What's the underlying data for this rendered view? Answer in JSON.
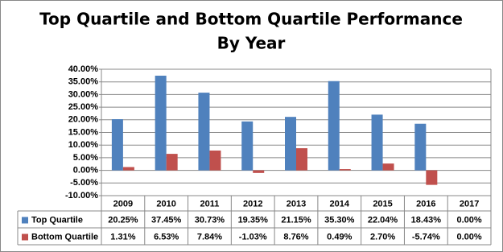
{
  "chart_data": {
    "type": "bar",
    "title": [
      "Top Quartile and Bottom Quartile Performance",
      "By Year"
    ],
    "categories": [
      "2009",
      "2010",
      "2011",
      "2012",
      "2013",
      "2014",
      "2015",
      "2016",
      "2017"
    ],
    "series": [
      {
        "name": "Top Quartile",
        "color": "#4f81bd",
        "values": [
          20.25,
          37.45,
          30.73,
          19.35,
          21.15,
          35.3,
          22.04,
          18.43,
          0
        ],
        "value_labels": [
          "20.25%",
          "37.45%",
          "30.73%",
          "19.35%",
          "21.15%",
          "35.30%",
          "22.04%",
          "18.43%",
          "0.00%"
        ]
      },
      {
        "name": "Bottom Quartile",
        "color": "#c0504d",
        "values": [
          1.31,
          6.53,
          7.84,
          -1.03,
          8.76,
          0.49,
          2.7,
          -5.74,
          0
        ],
        "value_labels": [
          "1.31%",
          "6.53%",
          "7.84%",
          "-1.03%",
          "8.76%",
          "0.49%",
          "2.70%",
          "-5.74%",
          "0.00%"
        ]
      }
    ],
    "ylim": [
      -10,
      40
    ],
    "yticks": [
      {
        "value": -10,
        "label": "-10.00%"
      },
      {
        "value": -5,
        "label": "-5.00%"
      },
      {
        "value": 0,
        "label": "0.00%"
      },
      {
        "value": 5,
        "label": "5.00%"
      },
      {
        "value": 10,
        "label": "10.00%"
      },
      {
        "value": 15,
        "label": "15.00%"
      },
      {
        "value": 20,
        "label": "20.00%"
      },
      {
        "value": 25,
        "label": "25.00%"
      },
      {
        "value": 30,
        "label": "30.00%"
      },
      {
        "value": 35,
        "label": "35.00%"
      },
      {
        "value": 40,
        "label": "40.00%"
      }
    ],
    "grid": true
  }
}
